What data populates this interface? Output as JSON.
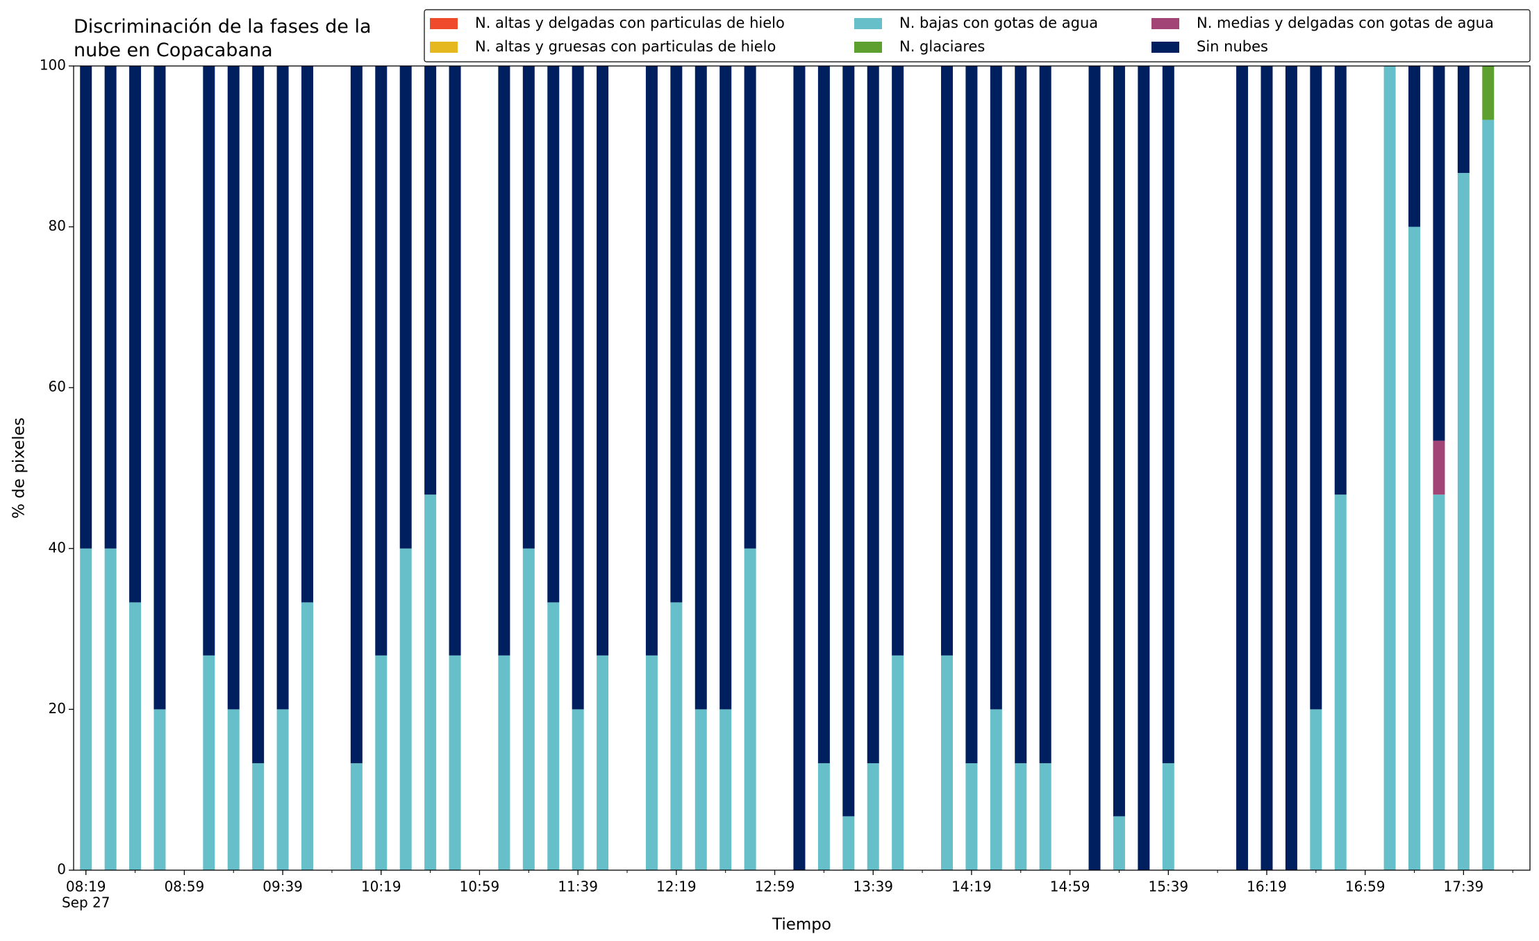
{
  "chart_data": {
    "type": "stacked_bar",
    "title": "Discriminación de la fases de la nube en Copacabana",
    "xlabel": "Tiempo",
    "ylabel": "% de pixeles",
    "x_date_label": "Sep 27",
    "x": [
      "08:19",
      "08:29",
      "08:39",
      "08:49",
      "09:09",
      "09:19",
      "09:29",
      "09:39",
      "09:49",
      "10:09",
      "10:19",
      "10:29",
      "10:39",
      "10:49",
      "11:09",
      "11:19",
      "11:29",
      "11:39",
      "11:49",
      "12:09",
      "12:19",
      "12:29",
      "12:39",
      "12:49",
      "13:09",
      "13:19",
      "13:29",
      "13:39",
      "13:49",
      "14:09",
      "14:19",
      "14:29",
      "14:39",
      "14:49",
      "15:09",
      "15:19",
      "15:29",
      "15:39",
      "16:09",
      "16:19",
      "16:29",
      "16:39",
      "16:49",
      "17:09",
      "17:19",
      "17:29",
      "17:39",
      "17:49"
    ],
    "series": [
      {
        "name": "N. altas y delgadas con particulas de hielo",
        "color": "#ee4a2b",
        "values": [
          0,
          0,
          0,
          0,
          0,
          0,
          0,
          0,
          0,
          0,
          0,
          0,
          0,
          0,
          0,
          0,
          0,
          0,
          0,
          0,
          0,
          0,
          0,
          0,
          0,
          0,
          0,
          0,
          0,
          0,
          0,
          0,
          0,
          0,
          0,
          0,
          0,
          0,
          0,
          0,
          0,
          0,
          0,
          0,
          0,
          0,
          0,
          0
        ]
      },
      {
        "name": "N. altas y gruesas con particulas de hielo",
        "color": "#e6b81f",
        "values": [
          0,
          0,
          0,
          0,
          0,
          0,
          0,
          0,
          0,
          0,
          0,
          0,
          0,
          0,
          0,
          0,
          0,
          0,
          0,
          0,
          0,
          0,
          0,
          0,
          0,
          0,
          0,
          0,
          0,
          0,
          0,
          0,
          0,
          0,
          0,
          0,
          0,
          0,
          0,
          0,
          0,
          0,
          0,
          0,
          0,
          0,
          0,
          0
        ]
      },
      {
        "name": "N. bajas con gotas de agua",
        "color": "#67bfca",
        "values": [
          40,
          40,
          33.3,
          20,
          26.7,
          20,
          13.3,
          20,
          33.3,
          13.3,
          26.7,
          40,
          46.7,
          26.7,
          26.7,
          40,
          33.3,
          20,
          26.7,
          26.7,
          33.3,
          20,
          20,
          40,
          0,
          13.3,
          6.7,
          13.3,
          26.7,
          26.7,
          13.3,
          20,
          13.3,
          13.3,
          0,
          6.7,
          0,
          13.3,
          0,
          0,
          0,
          20,
          46.7,
          100,
          80,
          46.7,
          86.7,
          93.3
        ]
      },
      {
        "name": "N. glaciares",
        "color": "#5ea030",
        "values": [
          0,
          0,
          0,
          0,
          0,
          0,
          0,
          0,
          0,
          0,
          0,
          0,
          0,
          0,
          0,
          0,
          0,
          0,
          0,
          0,
          0,
          0,
          0,
          0,
          0,
          0,
          0,
          0,
          0,
          0,
          0,
          0,
          0,
          0,
          0,
          0,
          0,
          0,
          0,
          0,
          0,
          0,
          0,
          0,
          0,
          0,
          0,
          6.7
        ]
      },
      {
        "name": "N. medias y delgadas con gotas de agua",
        "color": "#a34477",
        "values": [
          0,
          0,
          0,
          0,
          0,
          0,
          0,
          0,
          0,
          0,
          0,
          0,
          0,
          0,
          0,
          0,
          0,
          0,
          0,
          0,
          0,
          0,
          0,
          0,
          0,
          0,
          0,
          0,
          0,
          0,
          0,
          0,
          0,
          0,
          0,
          0,
          0,
          0,
          0,
          0,
          0,
          0,
          0,
          0,
          0,
          6.7,
          0,
          0
        ]
      },
      {
        "name": "Sin nubes",
        "color": "#001f5f",
        "values": [
          60,
          60,
          66.7,
          80,
          73.3,
          80,
          86.7,
          80,
          66.7,
          86.7,
          73.3,
          60,
          53.3,
          73.3,
          73.3,
          60,
          66.7,
          80,
          73.3,
          73.3,
          66.7,
          80,
          80,
          60,
          100,
          86.7,
          93.3,
          86.7,
          73.3,
          73.3,
          86.7,
          80,
          86.7,
          86.7,
          100,
          93.3,
          100,
          86.7,
          100,
          100,
          100,
          80,
          53.3,
          0,
          20,
          46.6,
          13.3,
          0
        ]
      }
    ],
    "xlim": [
      "08:14",
      "18:06"
    ],
    "xticks": [
      "08:19",
      "08:59",
      "09:39",
      "10:19",
      "10:59",
      "11:39",
      "12:19",
      "12:59",
      "13:39",
      "14:19",
      "14:59",
      "15:39",
      "16:19",
      "16:59",
      "17:39"
    ],
    "xminorticks": [
      "08:39",
      "09:19",
      "09:59",
      "10:39",
      "11:19",
      "11:59",
      "12:39",
      "13:19",
      "13:59",
      "14:39",
      "15:19",
      "15:59",
      "16:39",
      "17:19",
      "17:59"
    ],
    "ylim": [
      0,
      100
    ],
    "yticks": [
      0,
      20,
      40,
      60,
      80,
      100
    ],
    "legend": "top-right",
    "grid": false
  }
}
